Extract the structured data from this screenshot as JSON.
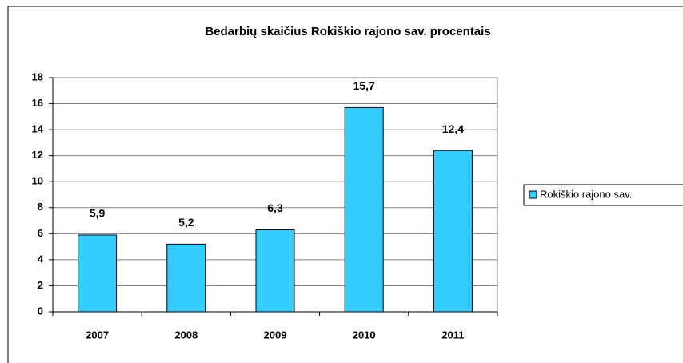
{
  "chart_data": {
    "type": "bar",
    "title": "Bedarbių skaičius Rokiškio rajono sav. procentais",
    "categories": [
      "2007",
      "2008",
      "2009",
      "2010",
      "2011"
    ],
    "series": [
      {
        "name": "Rokiškio rajono sav.",
        "color": "#33ccff",
        "values": [
          5.9,
          5.2,
          6.3,
          15.7,
          12.4
        ],
        "value_labels": [
          "5,9",
          "5,2",
          "6,3",
          "15,7",
          "12,4"
        ]
      }
    ],
    "ylim": [
      0,
      18
    ],
    "yticks": [
      0,
      2,
      4,
      6,
      8,
      10,
      12,
      14,
      16,
      18
    ],
    "grid": true,
    "legend": "right"
  }
}
